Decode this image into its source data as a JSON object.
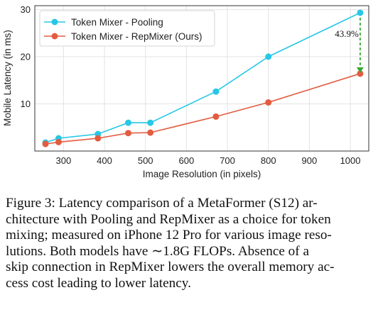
{
  "chart_data": {
    "type": "line",
    "xlabel": "Image Resolution (in pixels)",
    "ylabel": "Mobile Latency (in ms)",
    "xlim": [
      230,
      1045
    ],
    "ylim": [
      0,
      30.8
    ],
    "xticks": [
      300,
      400,
      500,
      600,
      700,
      800,
      900,
      1000
    ],
    "yticks": [
      10,
      20,
      30
    ],
    "grid": true,
    "legend_position": "top-left",
    "series": [
      {
        "name": "Token Mixer - Pooling",
        "color": "#27c7e6",
        "points": [
          [
            256,
            1.8
          ],
          [
            288,
            2.7
          ],
          [
            384,
            3.6
          ],
          [
            458,
            6.0
          ],
          [
            512,
            6.0
          ],
          [
            672,
            12.6
          ],
          [
            800,
            20.0
          ],
          [
            1024,
            29.3
          ]
        ]
      },
      {
        "name": "Token Mixer - RepMixer (Ours)",
        "color": "#e35c40",
        "points": [
          [
            256,
            1.5
          ],
          [
            288,
            1.9
          ],
          [
            384,
            2.7
          ],
          [
            458,
            3.8
          ],
          [
            512,
            3.9
          ],
          [
            672,
            7.3
          ],
          [
            800,
            10.3
          ],
          [
            1024,
            16.4
          ]
        ]
      }
    ],
    "annotations": [
      {
        "text": "43.9%",
        "x": 1024,
        "y_from": 29.3,
        "y_to": 16.4,
        "color": "#3aa832"
      }
    ]
  },
  "caption": {
    "lines": [
      "Figure 3: Latency comparison of a MetaFormer (S12) ar-",
      "chitecture with Pooling and RepMixer as a choice for token",
      "mixing; measured on iPhone 12 Pro for various image reso-",
      "lutions. Both models have ∼1.8G FLOPs. Absence of a",
      "skip connection in RepMixer lowers the overall memory ac-",
      "cess cost leading to lower latency."
    ]
  }
}
